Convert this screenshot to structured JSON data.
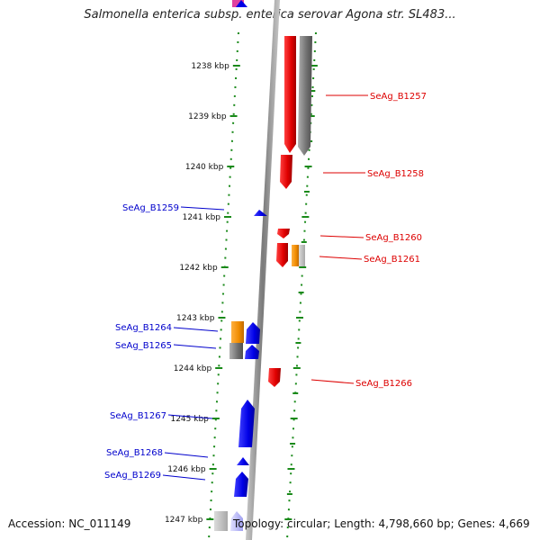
{
  "title": "Salmonella enterica subsp. enterica serovar Agona str. SL483...",
  "accession": "Accession: NC_011149",
  "summary": "Topology: circular; Length: 4,798,660 bp; Genes: 4,669",
  "colors": {
    "forward_cds": "#0000ee",
    "reverse_cds": "#ee0000",
    "other_feature": "#999999",
    "orange_feature": "#f08c00",
    "backbone": "#999999",
    "tick": "#1a8a1a"
  },
  "tick_labels": [
    "1238 kbp",
    "1239 kbp",
    "1240 kbp",
    "1241 kbp",
    "1242 kbp",
    "1243 kbp",
    "1244 kbp",
    "1245 kbp",
    "1246 kbp",
    "1247 kbp"
  ],
  "gene_labels": {
    "forward": [
      "SeAg_B1259",
      "SeAg_B1264",
      "SeAg_B1265",
      "SeAg_B1267",
      "SeAg_B1268",
      "SeAg_B1269"
    ],
    "reverse": [
      "SeAg_B1257",
      "SeAg_B1258",
      "SeAg_B1260",
      "SeAg_B1261",
      "SeAg_B1266"
    ]
  }
}
